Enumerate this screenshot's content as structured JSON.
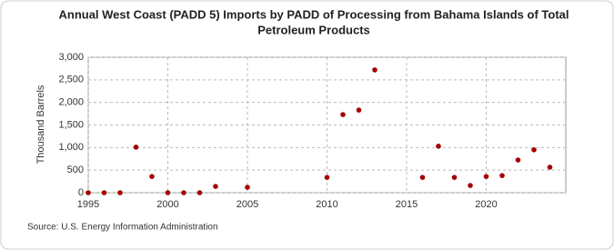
{
  "chart_data": {
    "type": "scatter",
    "title": [
      "Annual West Coast (PADD 5) Imports by PADD of Processing from Bahama Islands of Total",
      "Petroleum Products"
    ],
    "ylabel": "Thousand Barrels",
    "source": "Source: U.S. Energy Information Administration",
    "x": [
      1995,
      1996,
      1997,
      1998,
      1999,
      2000,
      2001,
      2002,
      2003,
      2005,
      2010,
      2011,
      2012,
      2013,
      2016,
      2017,
      2018,
      2019,
      2020,
      2021,
      2022,
      2023,
      2024
    ],
    "values": [
      0,
      0,
      0,
      1010,
      360,
      0,
      0,
      0,
      140,
      120,
      340,
      1730,
      1830,
      2720,
      340,
      1030,
      340,
      160,
      360,
      380,
      725,
      950,
      565
    ],
    "color": "#a50000",
    "xlim": [
      1995,
      2025
    ],
    "xticks": [
      1995,
      2000,
      2005,
      2010,
      2015,
      2020
    ],
    "ylim": [
      0,
      3000
    ],
    "yticks": [
      0,
      500,
      {
        "value": 1000,
        "label": "1,000"
      },
      {
        "value": 1500,
        "label": "1,500"
      },
      {
        "value": 2000,
        "label": "2,000"
      },
      {
        "value": 2500,
        "label": "2,500"
      },
      {
        "value": 3000,
        "label": "3,000"
      }
    ],
    "grid": true
  }
}
